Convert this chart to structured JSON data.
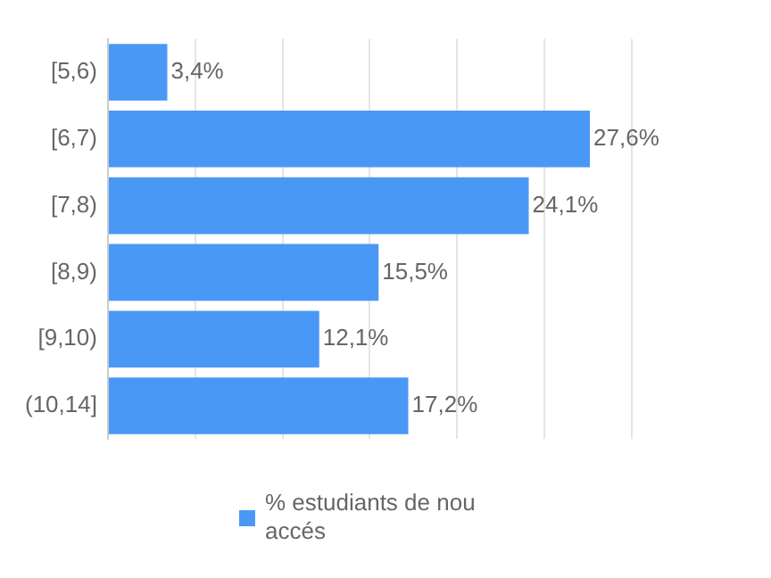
{
  "chart_data": {
    "type": "bar",
    "orientation": "horizontal",
    "categories": [
      "[5,6)",
      "[6,7)",
      "[7,8)",
      "[8,9)",
      "[9,10)",
      "(10,14]"
    ],
    "series": [
      {
        "name": "% estudiants de nou accés",
        "color": "#4a98f5",
        "values": [
          3.4,
          27.6,
          24.1,
          15.5,
          12.1,
          17.2
        ],
        "value_labels": [
          "3,4%",
          "27,6%",
          "24,1%",
          "15,5%",
          "12,1%",
          "17,2%"
        ]
      }
    ],
    "grid": "x",
    "legend": "bottom",
    "tick_labels": "y"
  }
}
